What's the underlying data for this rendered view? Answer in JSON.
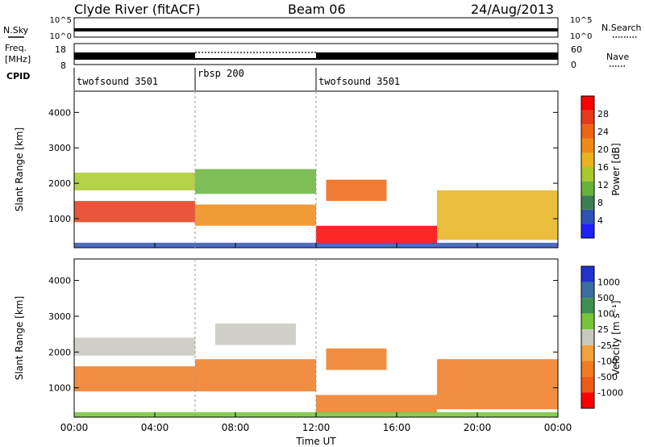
{
  "header": {
    "station": "Clyde River (fitACF)",
    "beam": "Beam 06",
    "date": "24/Aug/2013"
  },
  "status_panels": {
    "nsky_label": "N.Sky",
    "nsearch_label": "N.Search",
    "freq_label_top": "Freq.",
    "freq_label_units": "[MHz]",
    "nave_label": "Nave",
    "cpid_label": "CPID",
    "nsky_ticks": [
      "10^5",
      "10^0"
    ],
    "nsearch_ticks": [
      "10^5",
      "10^0"
    ],
    "freq_ticks": [
      "18",
      "8"
    ],
    "nave_ticks": [
      "60",
      "0"
    ],
    "cpid_segments": [
      {
        "label": "twofsound 3501",
        "start": 0,
        "end": 6
      },
      {
        "label": "rbsp 200",
        "start": 6,
        "end": 12
      },
      {
        "label": "twofsound 3501",
        "start": 12,
        "end": 24
      }
    ]
  },
  "axes": {
    "xlabel": "Time UT",
    "x_ticks": [
      "00:00",
      "04:00",
      "08:00",
      "12:00",
      "16:00",
      "20:00",
      "00:00"
    ],
    "ylabel": "Slant Range [km]",
    "y_ticks": [
      "1000",
      "2000",
      "3000",
      "4000"
    ]
  },
  "power_colorbar": {
    "label": "Power [dB]",
    "ticks": [
      "4",
      "8",
      "12",
      "16",
      "20",
      "24",
      "28"
    ],
    "colors": [
      "#1f1fff",
      "#2e53b5",
      "#3d7d52",
      "#67b33a",
      "#a9c92a",
      "#e8b31c",
      "#ef8a14",
      "#ee6412",
      "#e5381a",
      "#ff0000"
    ]
  },
  "velocity_colorbar": {
    "label": "Velocity [m s⁻¹]",
    "ticks": [
      "1000",
      "500",
      "100",
      "25",
      "-25",
      "-100",
      "-500",
      "-1000"
    ],
    "colors": [
      "#2233cc",
      "#3a6ea0",
      "#3f8f52",
      "#77c33a",
      "#c8c8c0",
      "#f3a13c",
      "#ef7a20",
      "#ec5a16",
      "#ff0000"
    ]
  },
  "chart_data": [
    {
      "type": "heatmap",
      "name": "power",
      "xlabel": "Time UT",
      "ylabel": "Slant Range [km]",
      "xlim": [
        0,
        24
      ],
      "ylim": [
        180,
        4600
      ],
      "zlabel": "Power [dB]",
      "zlim": [
        0,
        32
      ],
      "bands": [
        {
          "t0": 0.0,
          "t1": 6.0,
          "r0": 900,
          "r1": 1500,
          "value": 26
        },
        {
          "t0": 0.0,
          "t1": 6.0,
          "r0": 1800,
          "r1": 2300,
          "value": 14
        },
        {
          "t0": 6.0,
          "t1": 12.0,
          "r0": 800,
          "r1": 1400,
          "value": 22
        },
        {
          "t0": 6.0,
          "t1": 12.0,
          "r0": 1700,
          "r1": 2400,
          "value": 10
        },
        {
          "t0": 12.0,
          "t1": 18.0,
          "r0": 300,
          "r1": 800,
          "value": 30
        },
        {
          "t0": 12.5,
          "t1": 15.5,
          "r0": 1500,
          "r1": 2100,
          "value": 24
        },
        {
          "t0": 18.0,
          "t1": 24.0,
          "r0": 400,
          "r1": 1800,
          "value": 18
        },
        {
          "t0": 0.0,
          "t1": 24.0,
          "r0": 180,
          "r1": 320,
          "value": 6
        }
      ]
    },
    {
      "type": "heatmap",
      "name": "velocity",
      "xlabel": "Time UT",
      "ylabel": "Slant Range [km]",
      "xlim": [
        0,
        24
      ],
      "ylim": [
        180,
        4600
      ],
      "zlabel": "Velocity [m s⁻¹]",
      "bands": [
        {
          "t0": 0.0,
          "t1": 6.0,
          "r0": 900,
          "r1": 1600,
          "value": -300
        },
        {
          "t0": 0.0,
          "t1": 6.0,
          "r0": 1900,
          "r1": 2400,
          "value": 0
        },
        {
          "t0": 6.0,
          "t1": 12.0,
          "r0": 900,
          "r1": 1800,
          "value": -500
        },
        {
          "t0": 7.0,
          "t1": 11.0,
          "r0": 2200,
          "r1": 2800,
          "value": 0
        },
        {
          "t0": 12.0,
          "t1": 18.0,
          "r0": 300,
          "r1": 800,
          "value": -150
        },
        {
          "t0": 12.5,
          "t1": 15.5,
          "r0": 1500,
          "r1": 2100,
          "value": -400
        },
        {
          "t0": 18.0,
          "t1": 24.0,
          "r0": 400,
          "r1": 1800,
          "value": -500
        },
        {
          "t0": 0.0,
          "t1": 24.0,
          "r0": 180,
          "r1": 320,
          "value": 50
        }
      ]
    }
  ]
}
